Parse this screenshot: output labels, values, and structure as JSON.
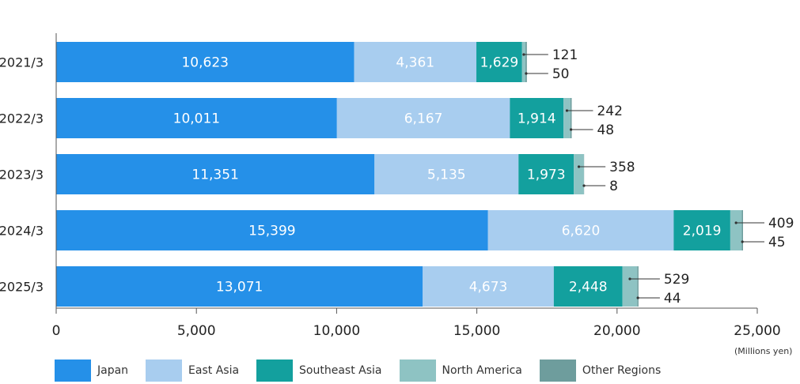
{
  "chart_data": {
    "type": "bar",
    "orientation": "horizontal",
    "stacked": true,
    "categories": [
      "2021/3",
      "2022/3",
      "2023/3",
      "2024/3",
      "2025/3"
    ],
    "series": [
      {
        "name": "Japan",
        "color": "#2590e8",
        "values": [
          10623,
          10011,
          11351,
          15399,
          13071
        ]
      },
      {
        "name": "East Asia",
        "color": "#a8cdef",
        "values": [
          4361,
          6167,
          5135,
          6620,
          4673
        ]
      },
      {
        "name": "Southeast Asia",
        "color": "#13a09e",
        "values": [
          1629,
          1914,
          1973,
          2019,
          2448
        ]
      },
      {
        "name": "North America",
        "color": "#8ec3c3",
        "values": [
          121,
          242,
          358,
          409,
          529
        ]
      },
      {
        "name": "Other Regions",
        "color": "#6e9d9d",
        "values": [
          50,
          48,
          8,
          45,
          44
        ]
      }
    ],
    "xlim": [
      0,
      25000
    ],
    "xticks": [
      0,
      5000,
      10000,
      15000,
      20000,
      25000
    ],
    "xtick_labels": [
      "0",
      "5,000",
      "10,000",
      "15,000",
      "20,000",
      "25,000"
    ],
    "value_labels": {
      "Japan": [
        "10,623",
        "10,011",
        "11,351",
        "15,399",
        "13,071"
      ],
      "East Asia": [
        "4,361",
        "6,167",
        "5,135",
        "6,620",
        "4,673"
      ],
      "Southeast Asia": [
        "1,629",
        "1,914",
        "1,973",
        "2,019",
        "2,448"
      ],
      "North America": [
        "121",
        "242",
        "358",
        "409",
        "529"
      ],
      "Other Regions": [
        "50",
        "48",
        "8",
        "45",
        "44"
      ]
    },
    "unit_label": "(Millions yen)",
    "legend_position": "bottom",
    "grid": false
  }
}
